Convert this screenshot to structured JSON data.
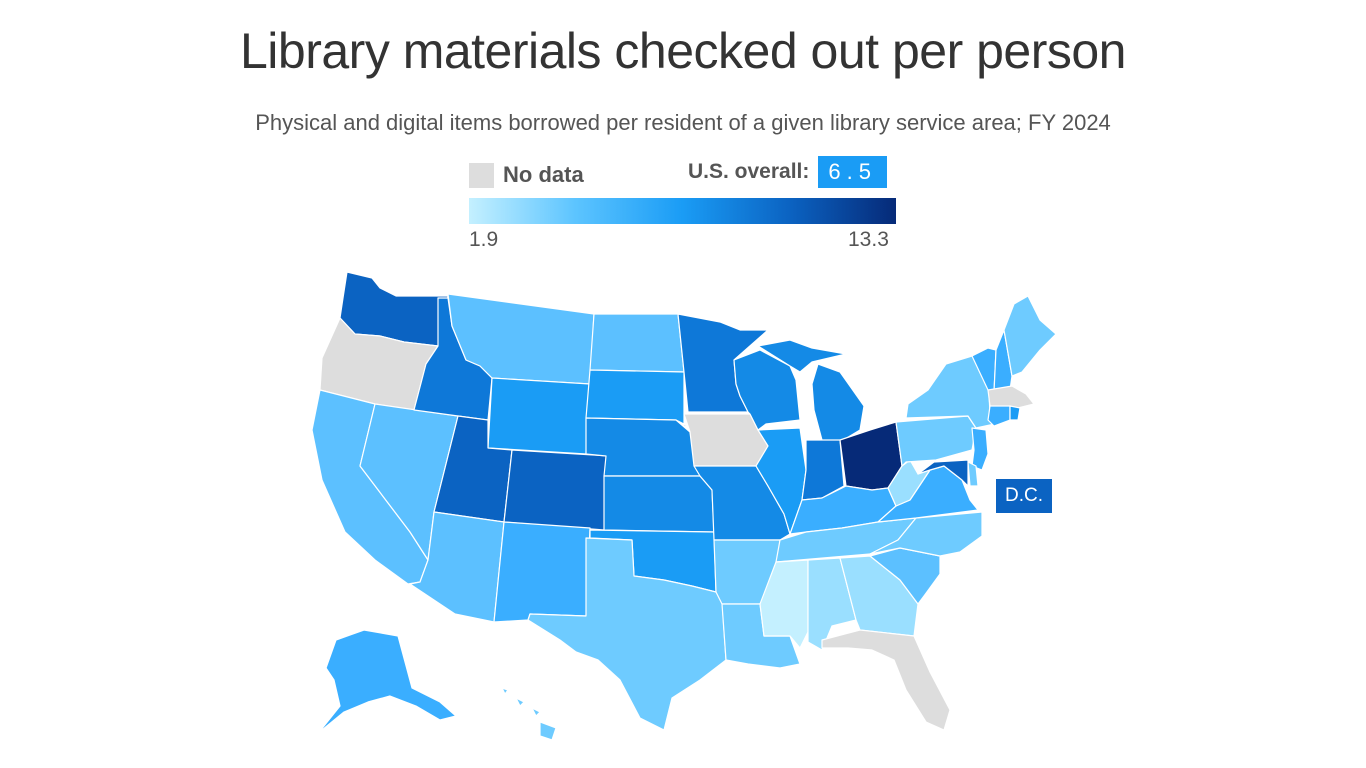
{
  "header": {
    "title": "Library materials checked out per person",
    "subtitle": "Physical and digital items borrowed per resident of a given library service area; FY 2024"
  },
  "legend": {
    "no_data_label": "No data",
    "no_data_color": "#dddddd",
    "overall_label": "U.S. overall:",
    "overall_value": "6.5",
    "min_label": "1.9",
    "max_label": "13.3",
    "gradient_colors": [
      "#c4f0ff",
      "#5cc4ff",
      "#1a9cf5",
      "#0b63c2",
      "#062a78"
    ]
  },
  "annotations": {
    "dc_label": "D.C."
  },
  "map": {
    "colors": {
      "no_data": "#dddddd",
      "lightest": "#c4f0ff",
      "very_light": "#9adfff",
      "light": "#6ecbff",
      "light_mid": "#5cc0ff",
      "mid": "#3aaeff",
      "mid_dark": "#1a9cf5",
      "dark": "#148ae6",
      "darker": "#0e78d8",
      "deep": "#0b63c2",
      "darkest": "#062a78"
    },
    "states": [
      {
        "name": "WA",
        "shade": "deep"
      },
      {
        "name": "OR",
        "shade": "no_data"
      },
      {
        "name": "CA",
        "shade": "light_mid"
      },
      {
        "name": "NV",
        "shade": "light_mid"
      },
      {
        "name": "ID",
        "shade": "darker"
      },
      {
        "name": "MT",
        "shade": "light_mid"
      },
      {
        "name": "WY",
        "shade": "mid_dark"
      },
      {
        "name": "UT",
        "shade": "deep"
      },
      {
        "name": "AZ",
        "shade": "light_mid"
      },
      {
        "name": "CO",
        "shade": "deep"
      },
      {
        "name": "NM",
        "shade": "mid"
      },
      {
        "name": "ND",
        "shade": "light_mid"
      },
      {
        "name": "SD",
        "shade": "mid_dark"
      },
      {
        "name": "NE",
        "shade": "dark"
      },
      {
        "name": "KS",
        "shade": "dark"
      },
      {
        "name": "OK",
        "shade": "mid_dark"
      },
      {
        "name": "TX",
        "shade": "light"
      },
      {
        "name": "MN",
        "shade": "darker"
      },
      {
        "name": "IA",
        "shade": "no_data"
      },
      {
        "name": "MO",
        "shade": "dark"
      },
      {
        "name": "AR",
        "shade": "light"
      },
      {
        "name": "LA",
        "shade": "light"
      },
      {
        "name": "WI",
        "shade": "dark"
      },
      {
        "name": "IL",
        "shade": "mid_dark"
      },
      {
        "name": "MI",
        "shade": "dark"
      },
      {
        "name": "IN",
        "shade": "darker"
      },
      {
        "name": "OH",
        "shade": "darkest"
      },
      {
        "name": "KY",
        "shade": "mid"
      },
      {
        "name": "TN",
        "shade": "light"
      },
      {
        "name": "MS",
        "shade": "lightest"
      },
      {
        "name": "AL",
        "shade": "very_light"
      },
      {
        "name": "GA",
        "shade": "very_light"
      },
      {
        "name": "FL",
        "shade": "no_data"
      },
      {
        "name": "SC",
        "shade": "light_mid"
      },
      {
        "name": "NC",
        "shade": "light"
      },
      {
        "name": "VA",
        "shade": "mid"
      },
      {
        "name": "WV",
        "shade": "very_light"
      },
      {
        "name": "PA",
        "shade": "light"
      },
      {
        "name": "NY",
        "shade": "light"
      },
      {
        "name": "VT",
        "shade": "mid"
      },
      {
        "name": "NH",
        "shade": "mid"
      },
      {
        "name": "ME",
        "shade": "light"
      },
      {
        "name": "MA",
        "shade": "no_data"
      },
      {
        "name": "CT",
        "shade": "mid"
      },
      {
        "name": "RI",
        "shade": "mid_dark"
      },
      {
        "name": "NJ",
        "shade": "mid"
      },
      {
        "name": "DE",
        "shade": "light"
      },
      {
        "name": "MD",
        "shade": "deep"
      },
      {
        "name": "AK",
        "shade": "mid"
      },
      {
        "name": "HI",
        "shade": "light"
      }
    ]
  }
}
